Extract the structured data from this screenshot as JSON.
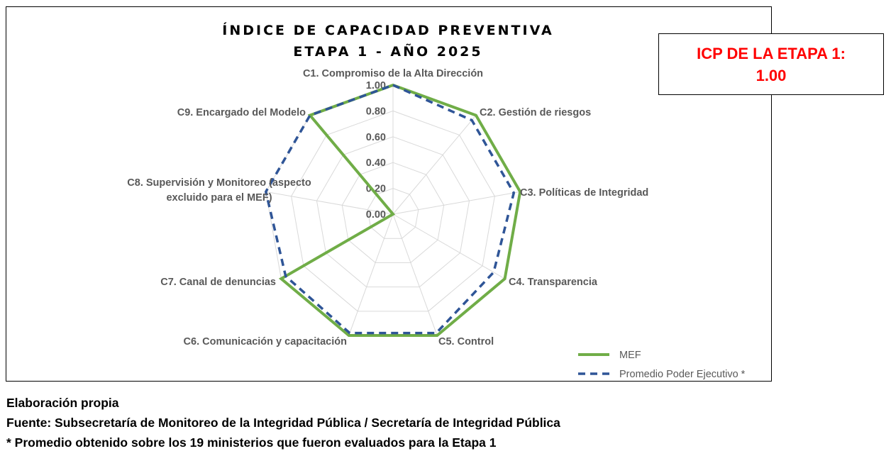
{
  "chart_data": {
    "type": "radar",
    "title": [
      "ÍNDICE DE CAPACIDAD PREVENTIVA",
      "ETAPA 1 - AÑO 2025"
    ],
    "categories": [
      "C1. Compromiso de la Alta Dirección",
      "C2. Gestión de riesgos",
      "C3.  Políticas de Integridad",
      "C4. Transparencia",
      "C5. Control",
      "C6. Comunicación y capacitación",
      "C7. Canal de denuncias",
      [
        "C8. Supervisión y Monitoreo (aspecto",
        "excluido para el MEF)"
      ],
      "C9. Encargado del Modelo"
    ],
    "axis": {
      "min": 0,
      "max": 1,
      "ticks": [
        "0.00",
        "0.20",
        "0.40",
        "0.60",
        "0.80",
        "1.00"
      ],
      "tick_values": [
        0,
        0.2,
        0.4,
        0.6,
        0.8,
        1.0
      ]
    },
    "series": [
      {
        "name": "MEF",
        "values": [
          1.0,
          1.0,
          1.0,
          1.0,
          1.0,
          1.0,
          1.0,
          0.0,
          1.0
        ],
        "color": "#70ad47",
        "style": "solid"
      },
      {
        "name": "Promedio Poder Ejecutivo *",
        "values": [
          1.0,
          0.95,
          0.95,
          0.9,
          0.98,
          0.98,
          0.96,
          1.0,
          1.0
        ],
        "color": "#2f5597",
        "style": "dashed"
      }
    ],
    "grid": true,
    "legend_position": "bottom-right"
  },
  "icp_box": {
    "line1": "ICP DE LA ETAPA 1:",
    "line2": "1.00",
    "color": "#ff0000"
  },
  "footer": {
    "line1": "Elaboración propia",
    "line2": "Fuente: Subsecretaría de Monitoreo de la Integridad Pública / Secretaría de Integridad Pública",
    "line3": "* Promedio obtenido sobre los 19 ministerios que fueron evaluados para la Etapa 1"
  }
}
